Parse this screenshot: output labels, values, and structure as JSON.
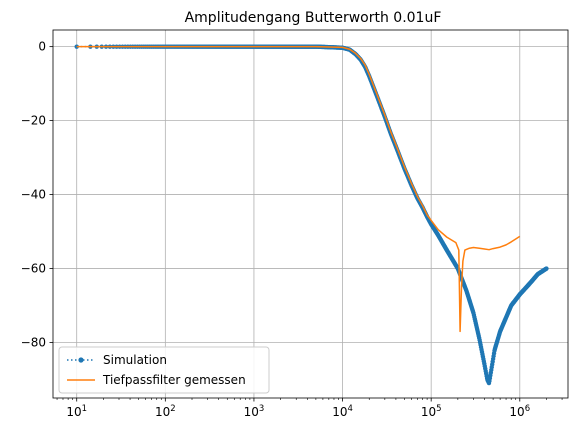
{
  "chart_data": {
    "type": "line",
    "title": "Amplitudengang Butterworth 0.01uF",
    "xlabel": "",
    "ylabel": "",
    "xscale": "log",
    "xlim": [
      5.4,
      3500000
    ],
    "ylim": [
      -95,
      4.5
    ],
    "grid": true,
    "legend_position": "lower-left",
    "x_ticks": [
      {
        "value": 10,
        "base": "10",
        "exp": "1"
      },
      {
        "value": 100,
        "base": "10",
        "exp": "2"
      },
      {
        "value": 1000,
        "base": "10",
        "exp": "3"
      },
      {
        "value": 10000,
        "base": "10",
        "exp": "4"
      },
      {
        "value": 100000,
        "base": "10",
        "exp": "5"
      },
      {
        "value": 1000000,
        "base": "10",
        "exp": "6"
      }
    ],
    "y_ticks": [
      {
        "value": 0,
        "label": "0"
      },
      {
        "value": -20,
        "label": "−20"
      },
      {
        "value": -40,
        "label": "−40"
      },
      {
        "value": -60,
        "label": "−60"
      },
      {
        "value": -80,
        "label": "−80"
      }
    ],
    "series": [
      {
        "name": "Simulation",
        "color": "#1f77b4",
        "style": "dotted-with-markers",
        "points": [
          [
            10,
            0
          ],
          [
            100,
            0
          ],
          [
            1000,
            0
          ],
          [
            5000,
            0
          ],
          [
            10000,
            -0.3
          ],
          [
            12000,
            -0.8
          ],
          [
            14000,
            -2
          ],
          [
            16000,
            -3.5
          ],
          [
            18000,
            -5.5
          ],
          [
            20000,
            -8
          ],
          [
            25000,
            -14
          ],
          [
            30000,
            -19
          ],
          [
            35000,
            -23.5
          ],
          [
            40000,
            -27
          ],
          [
            50000,
            -33
          ],
          [
            60000,
            -37.5
          ],
          [
            70000,
            -41
          ],
          [
            80000,
            -43.5
          ],
          [
            90000,
            -46
          ],
          [
            100000,
            -48
          ],
          [
            120000,
            -51
          ],
          [
            150000,
            -55
          ],
          [
            200000,
            -60
          ],
          [
            250000,
            -66
          ],
          [
            300000,
            -72
          ],
          [
            350000,
            -79
          ],
          [
            400000,
            -86
          ],
          [
            430000,
            -90
          ],
          [
            450000,
            -91
          ],
          [
            480000,
            -87
          ],
          [
            520000,
            -82
          ],
          [
            600000,
            -77
          ],
          [
            800000,
            -70
          ],
          [
            1000000,
            -67
          ],
          [
            1300000,
            -64
          ],
          [
            1600000,
            -61.5
          ],
          [
            2000000,
            -60
          ]
        ]
      },
      {
        "name": "Tiefpassfilter gemessen",
        "color": "#ff7f0e",
        "style": "solid",
        "points": [
          [
            10,
            0
          ],
          [
            100,
            0
          ],
          [
            1000,
            0
          ],
          [
            5000,
            0
          ],
          [
            10000,
            -0.2
          ],
          [
            12000,
            -0.7
          ],
          [
            14000,
            -1.8
          ],
          [
            16000,
            -3.2
          ],
          [
            18000,
            -5
          ],
          [
            20000,
            -7.5
          ],
          [
            25000,
            -13.5
          ],
          [
            30000,
            -18.5
          ],
          [
            35000,
            -23
          ],
          [
            40000,
            -26.5
          ],
          [
            50000,
            -32.5
          ],
          [
            60000,
            -37
          ],
          [
            70000,
            -40.5
          ],
          [
            80000,
            -43
          ],
          [
            90000,
            -45.5
          ],
          [
            100000,
            -47
          ],
          [
            120000,
            -49.5
          ],
          [
            150000,
            -51.5
          ],
          [
            190000,
            -53
          ],
          [
            205000,
            -55
          ],
          [
            212000,
            -77
          ],
          [
            220000,
            -65
          ],
          [
            228000,
            -58
          ],
          [
            240000,
            -55
          ],
          [
            270000,
            -54.5
          ],
          [
            300000,
            -54.3
          ],
          [
            350000,
            -54.5
          ],
          [
            400000,
            -54.7
          ],
          [
            450000,
            -54.9
          ],
          [
            500000,
            -54.6
          ],
          [
            600000,
            -54.2
          ],
          [
            700000,
            -53.6
          ],
          [
            800000,
            -52.8
          ],
          [
            900000,
            -52
          ],
          [
            1000000,
            -51.3
          ]
        ]
      }
    ]
  }
}
